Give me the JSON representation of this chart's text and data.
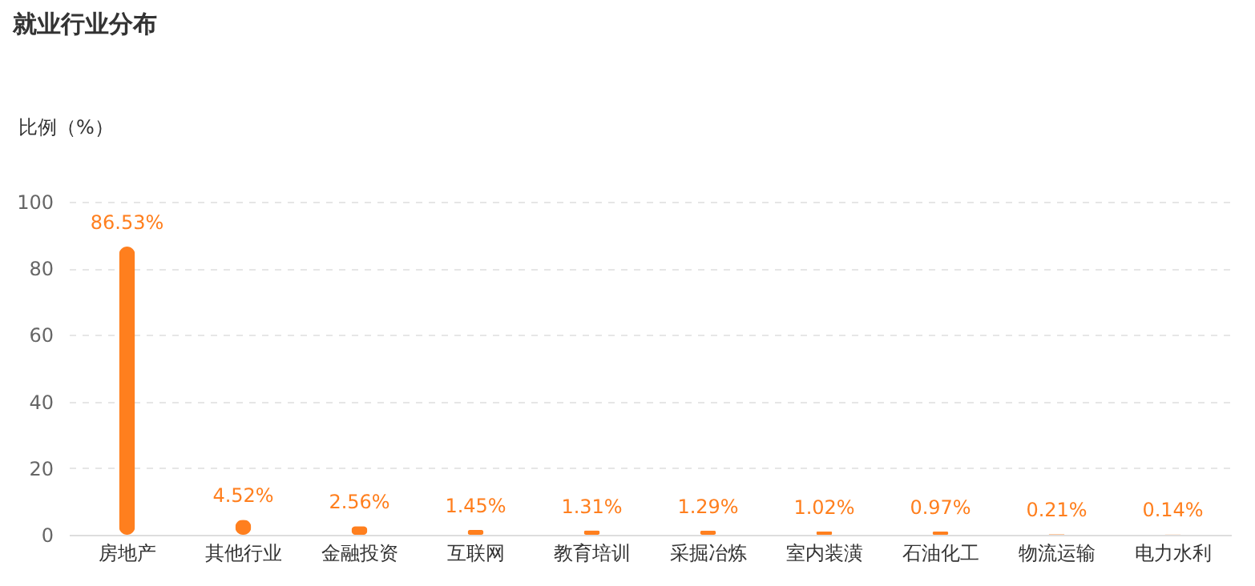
{
  "chart_data": {
    "type": "bar",
    "title": "就业行业分布",
    "ylabel": "比例（%）",
    "categories": [
      "房地产",
      "其他行业",
      "金融投资",
      "互联网",
      "教育培训",
      "采掘冶炼",
      "室内装潢",
      "石油化工",
      "物流运输",
      "电力水利"
    ],
    "values": [
      86.53,
      4.52,
      2.56,
      1.45,
      1.31,
      1.29,
      1.02,
      0.97,
      0.21,
      0.14
    ],
    "value_labels": [
      "86.53%",
      "4.52%",
      "2.56%",
      "1.45%",
      "1.31%",
      "1.29%",
      "1.02%",
      "0.97%",
      "0.21%",
      "0.14%"
    ],
    "color": "#ff7f1e",
    "ylim": [
      0,
      100
    ],
    "yticks": [
      0,
      20,
      40,
      60,
      80,
      100
    ],
    "grid": "y"
  }
}
